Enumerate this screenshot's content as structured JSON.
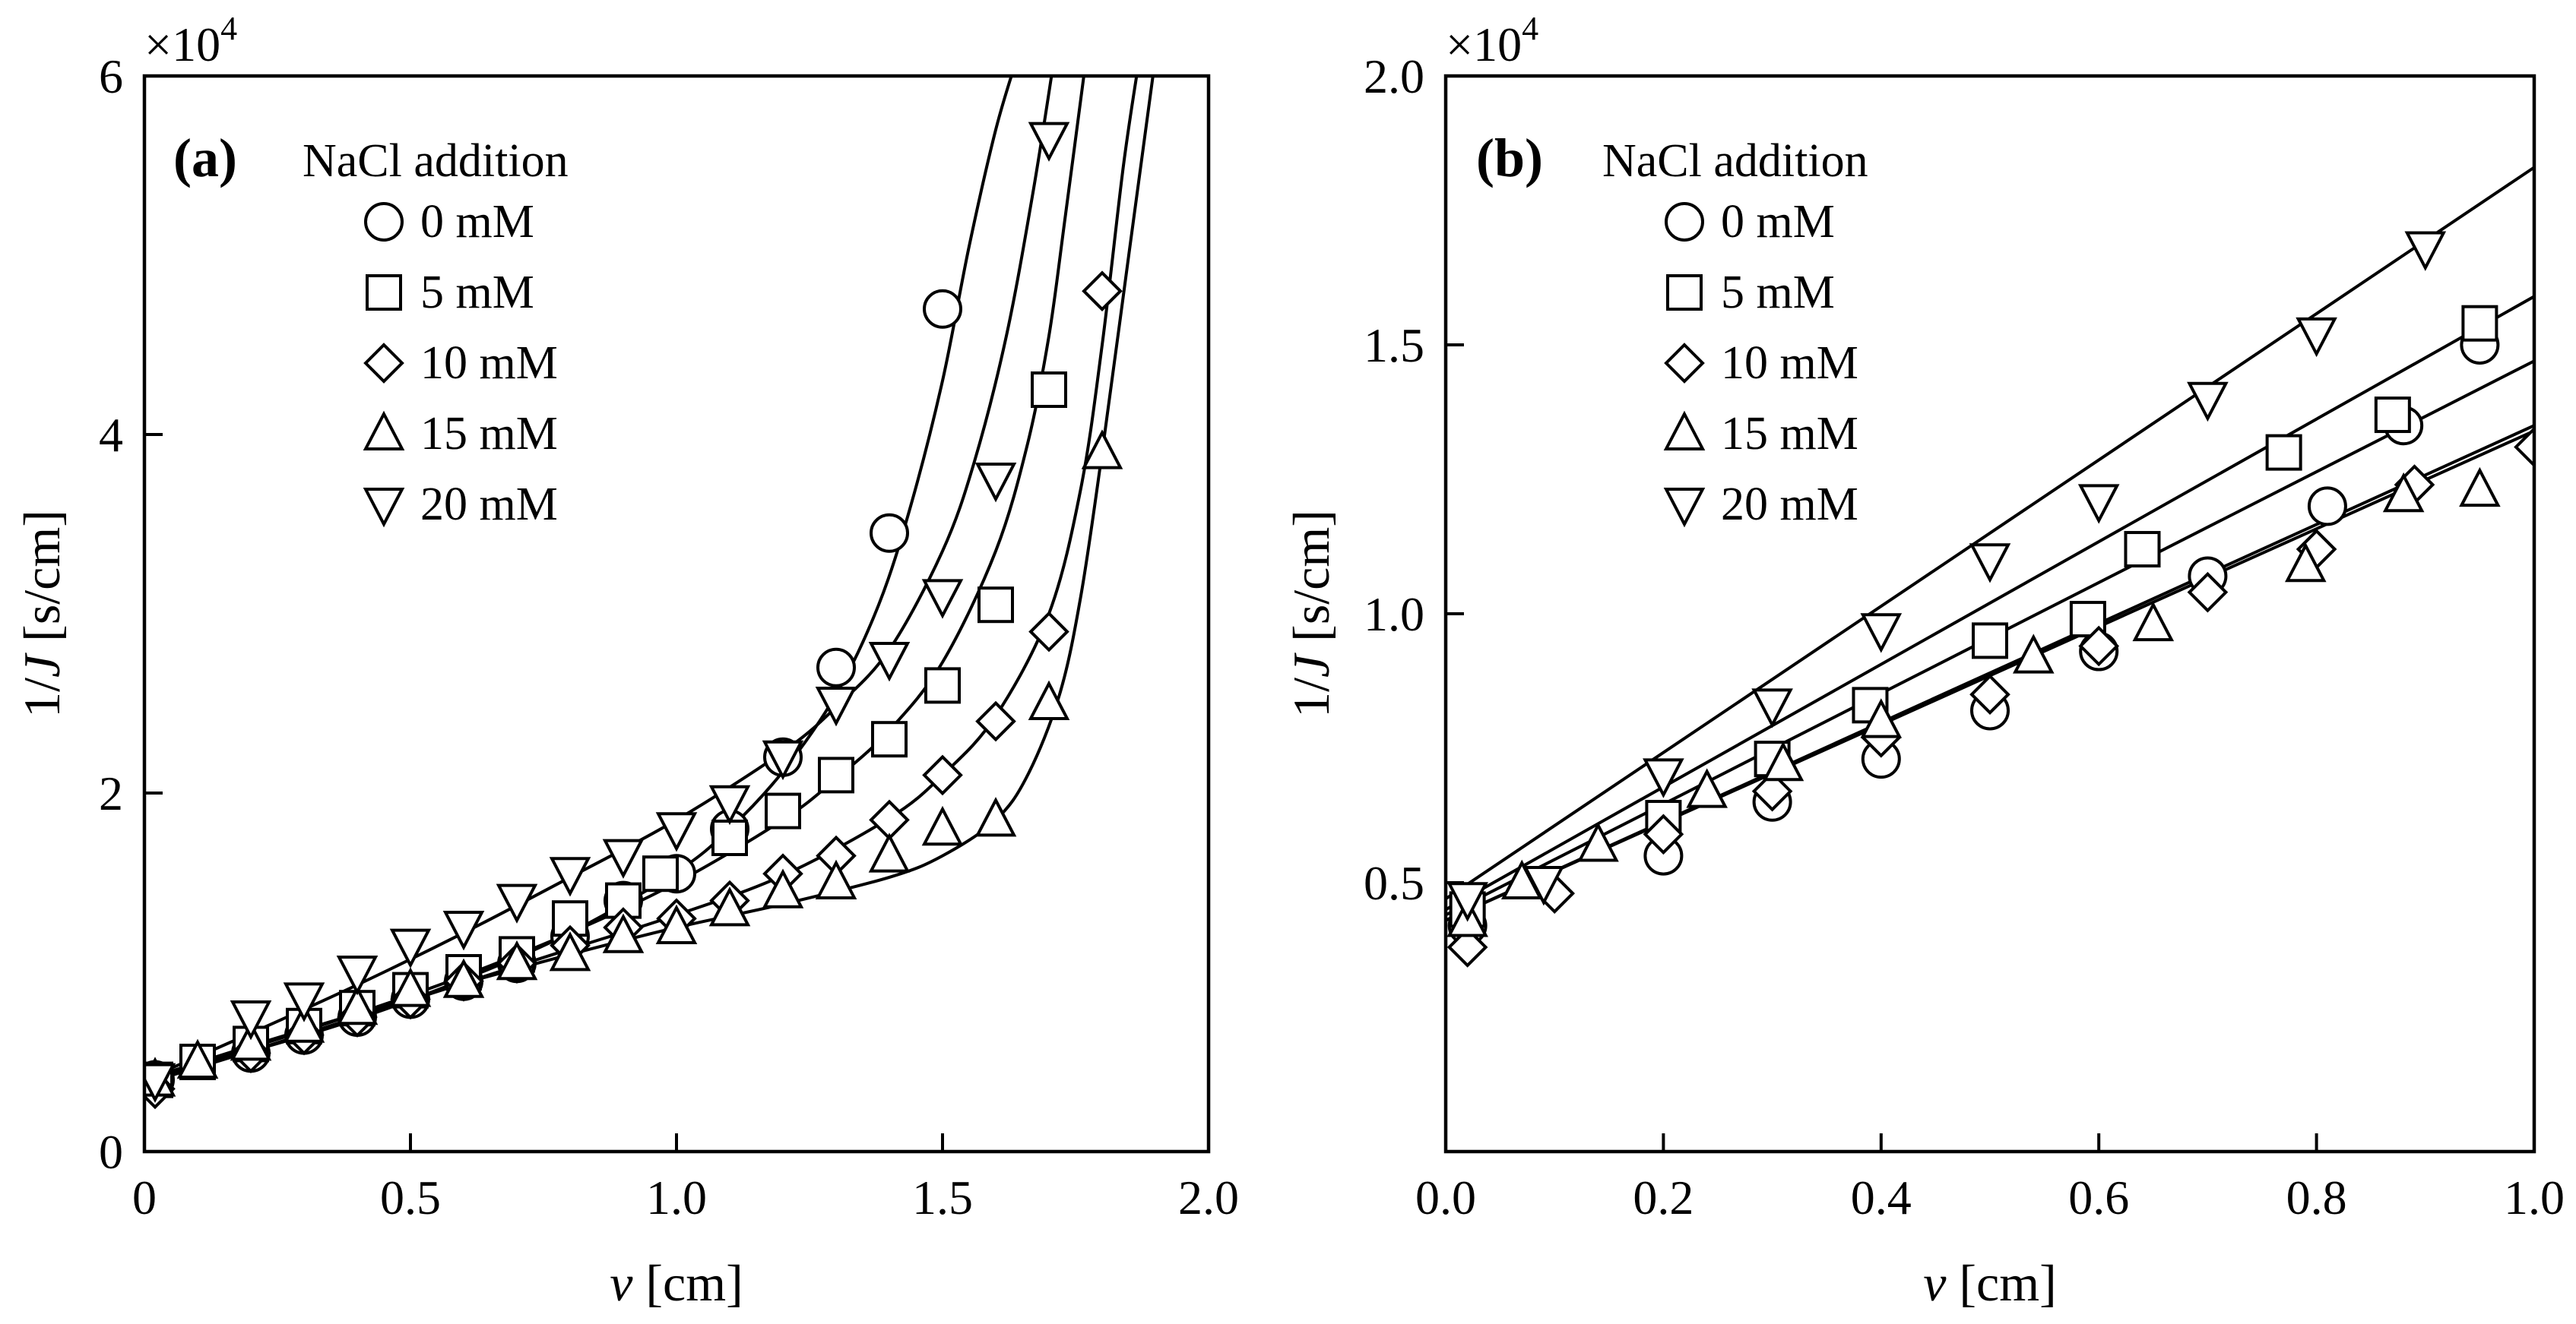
{
  "chart_data": [
    {
      "type": "scatter",
      "panel_label": "(a)",
      "legend_title": "NaCl addition",
      "xlabel_var": "v",
      "xlabel_unit": " [cm]",
      "ylabel_var": "J",
      "ylabel_prefix": "1/",
      "ylabel_unit": " [s/cm]",
      "yexponent": "×10",
      "yexponent_power": "4",
      "xlim": [
        0,
        2.0
      ],
      "ylim": [
        0,
        60000
      ],
      "xticks": [
        {
          "value": 0,
          "label": "0"
        },
        {
          "value": 0.5,
          "label": "0.5"
        },
        {
          "value": 1.0,
          "label": "1.0"
        },
        {
          "value": 1.5,
          "label": "1.5"
        },
        {
          "value": 2.0,
          "label": "2.0"
        }
      ],
      "yticks": [
        {
          "value": 0,
          "label": "0"
        },
        {
          "value": 20000,
          "label": "2"
        },
        {
          "value": 40000,
          "label": "4"
        },
        {
          "value": 60000,
          "label": "6"
        }
      ],
      "series": [
        {
          "name": "0 mM",
          "marker": "circle",
          "x": [
            0.02,
            0.2,
            0.3,
            0.4,
            0.5,
            0.6,
            0.7,
            0.8,
            0.9,
            1.0,
            1.1,
            1.2,
            1.3,
            1.4,
            1.5
          ],
          "y": [
            4000,
            5500,
            6500,
            7500,
            8500,
            9500,
            10500,
            12000,
            14000,
            15500,
            18000,
            22000,
            27000,
            34500,
            47000
          ],
          "fit_x": [
            0.0,
            0.2,
            0.4,
            0.6,
            0.8,
            1.0,
            1.1,
            1.2,
            1.3,
            1.38,
            1.44,
            1.5,
            1.55,
            1.6,
            1.64
          ],
          "fit_y": [
            4000,
            5600,
            7400,
            9600,
            12200,
            15600,
            18000,
            21200,
            25500,
            30500,
            36000,
            43000,
            50500,
            57000,
            61000
          ]
        },
        {
          "name": "5 mM",
          "marker": "square",
          "x": [
            0.02,
            0.1,
            0.2,
            0.3,
            0.4,
            0.5,
            0.6,
            0.7,
            0.8,
            0.9,
            0.97,
            1.1,
            1.2,
            1.3,
            1.4,
            1.5,
            1.6,
            1.7
          ],
          "y": [
            4000,
            5000,
            6000,
            7000,
            8000,
            9000,
            10000,
            11000,
            13000,
            14000,
            15500,
            17500,
            19000,
            21000,
            23000,
            26000,
            30500,
            42500
          ],
          "fit_x": [
            0.0,
            0.2,
            0.4,
            0.6,
            0.8,
            1.0,
            1.2,
            1.3,
            1.4,
            1.5,
            1.6,
            1.66,
            1.7,
            1.73,
            1.77
          ],
          "fit_y": [
            4000,
            5800,
            7700,
            9800,
            12200,
            15000,
            18500,
            20800,
            23500,
            27300,
            33500,
            39500,
            45500,
            52000,
            61000
          ]
        },
        {
          "name": "10 mM",
          "marker": "diamond",
          "x": [
            0.02,
            0.2,
            0.3,
            0.4,
            0.5,
            0.6,
            0.7,
            0.8,
            0.9,
            1.0,
            1.1,
            1.2,
            1.3,
            1.4,
            1.5,
            1.6,
            1.7,
            1.8
          ],
          "y": [
            3500,
            5500,
            6500,
            7500,
            8500,
            9500,
            10500,
            11500,
            12500,
            13000,
            14000,
            15500,
            16500,
            18500,
            21000,
            24000,
            29000,
            48000
          ],
          "fit_x": [
            0.0,
            0.2,
            0.4,
            0.6,
            0.8,
            1.0,
            1.2,
            1.4,
            1.5,
            1.6,
            1.7,
            1.76,
            1.8,
            1.84,
            1.87
          ],
          "fit_y": [
            3800,
            5600,
            7500,
            9400,
            11300,
            13200,
            15400,
            18600,
            21000,
            24300,
            30000,
            37000,
            45000,
            55000,
            61000
          ]
        },
        {
          "name": "15 mM",
          "marker": "triangle-up",
          "x": [
            0.02,
            0.1,
            0.2,
            0.3,
            0.4,
            0.5,
            0.6,
            0.7,
            0.8,
            0.9,
            1.0,
            1.1,
            1.2,
            1.3,
            1.4,
            1.5,
            1.6,
            1.7,
            1.8
          ],
          "y": [
            4000,
            5000,
            6000,
            7000,
            8000,
            9000,
            9500,
            10500,
            11000,
            12000,
            12500,
            13500,
            14500,
            15000,
            16500,
            18000,
            18500,
            25000,
            39000
          ],
          "fit_x": [
            0.0,
            0.2,
            0.4,
            0.6,
            0.8,
            1.0,
            1.2,
            1.4,
            1.5,
            1.6,
            1.66,
            1.72,
            1.76,
            1.8,
            1.85,
            1.9
          ],
          "fit_y": [
            4000,
            5900,
            7700,
            9400,
            11000,
            12500,
            13800,
            15300,
            16500,
            18500,
            21000,
            25500,
            31000,
            39000,
            50000,
            61000
          ]
        },
        {
          "name": "20 mM",
          "marker": "triangle-down",
          "x": [
            0.02,
            0.2,
            0.3,
            0.4,
            0.5,
            0.6,
            0.7,
            0.8,
            0.9,
            1.0,
            1.1,
            1.2,
            1.3,
            1.4,
            1.5,
            1.6,
            1.7
          ],
          "y": [
            4000,
            7500,
            8500,
            10000,
            11500,
            12500,
            14000,
            15500,
            16500,
            18000,
            19500,
            22000,
            25000,
            27500,
            31000,
            37500,
            56500
          ],
          "fit_x": [
            0.0,
            0.2,
            0.4,
            0.6,
            0.8,
            1.0,
            1.2,
            1.3,
            1.4,
            1.5,
            1.56,
            1.62,
            1.67,
            1.71
          ],
          "fit_y": [
            4000,
            6600,
            9300,
            12200,
            15300,
            18500,
            22300,
            24800,
            28000,
            33500,
            38500,
            45500,
            53500,
            61000
          ]
        }
      ]
    },
    {
      "type": "scatter",
      "panel_label": "(b)",
      "legend_title": "NaCl addition",
      "xlabel_var": "v",
      "xlabel_unit": " [cm]",
      "ylabel_var": "J",
      "ylabel_prefix": "1/",
      "ylabel_unit": " [s/cm]",
      "yexponent": "×10",
      "yexponent_power": "4",
      "xlim": [
        0,
        1.0
      ],
      "ylim": [
        0,
        20000
      ],
      "xticks": [
        {
          "value": 0,
          "label": "0.0"
        },
        {
          "value": 0.2,
          "label": "0.2"
        },
        {
          "value": 0.4,
          "label": "0.4"
        },
        {
          "value": 0.6,
          "label": "0.6"
        },
        {
          "value": 0.8,
          "label": "0.8"
        },
        {
          "value": 1.0,
          "label": "1.0"
        }
      ],
      "yticks": [
        {
          "value": 5000,
          "label": "0.5"
        },
        {
          "value": 10000,
          "label": "1.0"
        },
        {
          "value": 15000,
          "label": "1.5"
        },
        {
          "value": 20000,
          "label": "2.0"
        }
      ],
      "series": [
        {
          "name": "0 mM",
          "marker": "circle",
          "x": [
            0.02,
            0.2,
            0.3,
            0.4,
            0.5,
            0.6,
            0.7,
            0.81,
            0.88,
            0.95
          ],
          "y": [
            4200,
            5500,
            6500,
            7300,
            8200,
            9300,
            10700,
            12000,
            13500,
            15000
          ],
          "fit_x": [
            0.0,
            1.0
          ],
          "fit_y": [
            4400,
            14700
          ]
        },
        {
          "name": "5 mM",
          "marker": "square",
          "x": [
            0.02,
            0.2,
            0.3,
            0.39,
            0.5,
            0.59,
            0.64,
            0.77,
            0.87,
            0.95
          ],
          "y": [
            4500,
            6200,
            7300,
            8300,
            9500,
            9900,
            11200,
            13000,
            13700,
            15400
          ],
          "fit_x": [
            0.0,
            1.0
          ],
          "fit_y": [
            4500,
            15900
          ]
        },
        {
          "name": "10 mM",
          "marker": "diamond",
          "x": [
            0.02,
            0.1,
            0.2,
            0.3,
            0.4,
            0.5,
            0.6,
            0.7,
            0.8,
            0.89,
            1.0
          ],
          "y": [
            3800,
            4800,
            5900,
            6700,
            7700,
            8500,
            9400,
            10400,
            11200,
            12400,
            13100
          ],
          "fit_x": [
            0.0,
            1.0
          ],
          "fit_y": [
            4300,
            13400
          ]
        },
        {
          "name": "15 mM",
          "marker": "triangle-up",
          "x": [
            0.02,
            0.07,
            0.14,
            0.24,
            0.31,
            0.4,
            0.54,
            0.65,
            0.79,
            0.88,
            0.95
          ],
          "y": [
            4300,
            5000,
            5700,
            6700,
            7200,
            8000,
            9200,
            9800,
            10900,
            12200,
            12300
          ],
          "fit_x": [
            0.0,
            1.0
          ],
          "fit_y": [
            4300,
            13500
          ]
        },
        {
          "name": "20 mM",
          "marker": "triangle-down",
          "x": [
            0.02,
            0.09,
            0.2,
            0.3,
            0.4,
            0.5,
            0.6,
            0.7,
            0.8,
            0.9
          ],
          "y": [
            4700,
            5000,
            7000,
            8300,
            9700,
            11000,
            12100,
            14000,
            15200,
            16800
          ],
          "fit_x": [
            0.0,
            1.0
          ],
          "fit_y": [
            4700,
            18300
          ]
        }
      ]
    }
  ]
}
